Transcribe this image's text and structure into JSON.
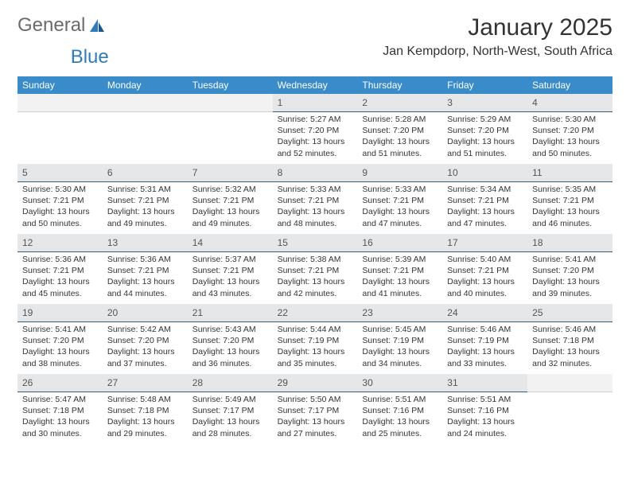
{
  "brand": {
    "text1": "General",
    "text2": "Blue",
    "accent": "#2f7bbf",
    "gray": "#6b6b6b"
  },
  "title": "January 2025",
  "subtitle": "Jan Kempdorp, North-West, South Africa",
  "colors": {
    "header_bg": "#3a8bc9",
    "header_fg": "#ffffff",
    "daynum_bg": "#e6e7e8",
    "daynum_border": "#2f5b80",
    "text": "#333333"
  },
  "days_of_week": [
    "Sunday",
    "Monday",
    "Tuesday",
    "Wednesday",
    "Thursday",
    "Friday",
    "Saturday"
  ],
  "weeks": [
    [
      {
        "n": "",
        "empty": true
      },
      {
        "n": "",
        "empty": true
      },
      {
        "n": "",
        "empty": true
      },
      {
        "n": "1",
        "sunrise": "Sunrise: 5:27 AM",
        "sunset": "Sunset: 7:20 PM",
        "daylight": "Daylight: 13 hours and 52 minutes."
      },
      {
        "n": "2",
        "sunrise": "Sunrise: 5:28 AM",
        "sunset": "Sunset: 7:20 PM",
        "daylight": "Daylight: 13 hours and 51 minutes."
      },
      {
        "n": "3",
        "sunrise": "Sunrise: 5:29 AM",
        "sunset": "Sunset: 7:20 PM",
        "daylight": "Daylight: 13 hours and 51 minutes."
      },
      {
        "n": "4",
        "sunrise": "Sunrise: 5:30 AM",
        "sunset": "Sunset: 7:20 PM",
        "daylight": "Daylight: 13 hours and 50 minutes."
      }
    ],
    [
      {
        "n": "5",
        "sunrise": "Sunrise: 5:30 AM",
        "sunset": "Sunset: 7:21 PM",
        "daylight": "Daylight: 13 hours and 50 minutes."
      },
      {
        "n": "6",
        "sunrise": "Sunrise: 5:31 AM",
        "sunset": "Sunset: 7:21 PM",
        "daylight": "Daylight: 13 hours and 49 minutes."
      },
      {
        "n": "7",
        "sunrise": "Sunrise: 5:32 AM",
        "sunset": "Sunset: 7:21 PM",
        "daylight": "Daylight: 13 hours and 49 minutes."
      },
      {
        "n": "8",
        "sunrise": "Sunrise: 5:33 AM",
        "sunset": "Sunset: 7:21 PM",
        "daylight": "Daylight: 13 hours and 48 minutes."
      },
      {
        "n": "9",
        "sunrise": "Sunrise: 5:33 AM",
        "sunset": "Sunset: 7:21 PM",
        "daylight": "Daylight: 13 hours and 47 minutes."
      },
      {
        "n": "10",
        "sunrise": "Sunrise: 5:34 AM",
        "sunset": "Sunset: 7:21 PM",
        "daylight": "Daylight: 13 hours and 47 minutes."
      },
      {
        "n": "11",
        "sunrise": "Sunrise: 5:35 AM",
        "sunset": "Sunset: 7:21 PM",
        "daylight": "Daylight: 13 hours and 46 minutes."
      }
    ],
    [
      {
        "n": "12",
        "sunrise": "Sunrise: 5:36 AM",
        "sunset": "Sunset: 7:21 PM",
        "daylight": "Daylight: 13 hours and 45 minutes."
      },
      {
        "n": "13",
        "sunrise": "Sunrise: 5:36 AM",
        "sunset": "Sunset: 7:21 PM",
        "daylight": "Daylight: 13 hours and 44 minutes."
      },
      {
        "n": "14",
        "sunrise": "Sunrise: 5:37 AM",
        "sunset": "Sunset: 7:21 PM",
        "daylight": "Daylight: 13 hours and 43 minutes."
      },
      {
        "n": "15",
        "sunrise": "Sunrise: 5:38 AM",
        "sunset": "Sunset: 7:21 PM",
        "daylight": "Daylight: 13 hours and 42 minutes."
      },
      {
        "n": "16",
        "sunrise": "Sunrise: 5:39 AM",
        "sunset": "Sunset: 7:21 PM",
        "daylight": "Daylight: 13 hours and 41 minutes."
      },
      {
        "n": "17",
        "sunrise": "Sunrise: 5:40 AM",
        "sunset": "Sunset: 7:21 PM",
        "daylight": "Daylight: 13 hours and 40 minutes."
      },
      {
        "n": "18",
        "sunrise": "Sunrise: 5:41 AM",
        "sunset": "Sunset: 7:20 PM",
        "daylight": "Daylight: 13 hours and 39 minutes."
      }
    ],
    [
      {
        "n": "19",
        "sunrise": "Sunrise: 5:41 AM",
        "sunset": "Sunset: 7:20 PM",
        "daylight": "Daylight: 13 hours and 38 minutes."
      },
      {
        "n": "20",
        "sunrise": "Sunrise: 5:42 AM",
        "sunset": "Sunset: 7:20 PM",
        "daylight": "Daylight: 13 hours and 37 minutes."
      },
      {
        "n": "21",
        "sunrise": "Sunrise: 5:43 AM",
        "sunset": "Sunset: 7:20 PM",
        "daylight": "Daylight: 13 hours and 36 minutes."
      },
      {
        "n": "22",
        "sunrise": "Sunrise: 5:44 AM",
        "sunset": "Sunset: 7:19 PM",
        "daylight": "Daylight: 13 hours and 35 minutes."
      },
      {
        "n": "23",
        "sunrise": "Sunrise: 5:45 AM",
        "sunset": "Sunset: 7:19 PM",
        "daylight": "Daylight: 13 hours and 34 minutes."
      },
      {
        "n": "24",
        "sunrise": "Sunrise: 5:46 AM",
        "sunset": "Sunset: 7:19 PM",
        "daylight": "Daylight: 13 hours and 33 minutes."
      },
      {
        "n": "25",
        "sunrise": "Sunrise: 5:46 AM",
        "sunset": "Sunset: 7:18 PM",
        "daylight": "Daylight: 13 hours and 32 minutes."
      }
    ],
    [
      {
        "n": "26",
        "sunrise": "Sunrise: 5:47 AM",
        "sunset": "Sunset: 7:18 PM",
        "daylight": "Daylight: 13 hours and 30 minutes."
      },
      {
        "n": "27",
        "sunrise": "Sunrise: 5:48 AM",
        "sunset": "Sunset: 7:18 PM",
        "daylight": "Daylight: 13 hours and 29 minutes."
      },
      {
        "n": "28",
        "sunrise": "Sunrise: 5:49 AM",
        "sunset": "Sunset: 7:17 PM",
        "daylight": "Daylight: 13 hours and 28 minutes."
      },
      {
        "n": "29",
        "sunrise": "Sunrise: 5:50 AM",
        "sunset": "Sunset: 7:17 PM",
        "daylight": "Daylight: 13 hours and 27 minutes."
      },
      {
        "n": "30",
        "sunrise": "Sunrise: 5:51 AM",
        "sunset": "Sunset: 7:16 PM",
        "daylight": "Daylight: 13 hours and 25 minutes."
      },
      {
        "n": "31",
        "sunrise": "Sunrise: 5:51 AM",
        "sunset": "Sunset: 7:16 PM",
        "daylight": "Daylight: 13 hours and 24 minutes."
      },
      {
        "n": "",
        "empty": true
      }
    ]
  ]
}
